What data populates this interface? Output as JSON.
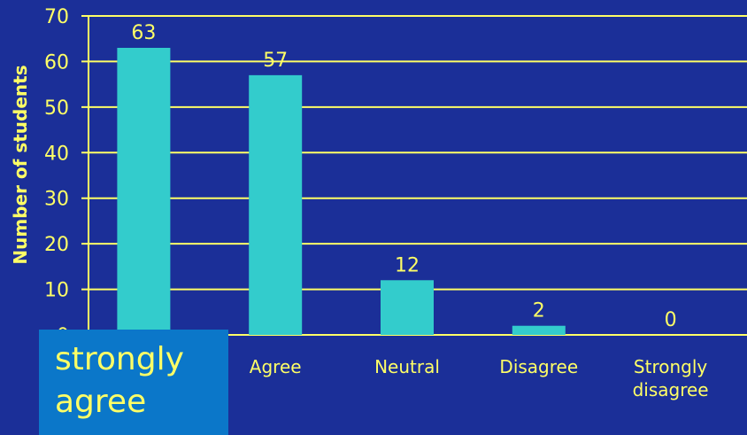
{
  "colors": {
    "background": "#1b2f98",
    "bar": "#33cccc",
    "text": "#ffff66",
    "grid": "#ffff66",
    "overlay": "#0b77c9"
  },
  "chart_data": {
    "type": "bar",
    "categories": [
      "",
      "Agree",
      "Neutral",
      "Disagree",
      "Strongly\ndisagree"
    ],
    "values": [
      63,
      57,
      12,
      2,
      0
    ],
    "data_labels": [
      "63",
      "57",
      "12",
      "2",
      "0"
    ],
    "ylabel": "Number of students",
    "ylim": [
      0,
      70
    ],
    "yticks": [
      0,
      10,
      20,
      30,
      40,
      50,
      60,
      70
    ],
    "grid": true
  },
  "overlay": {
    "label": "strongly\nagree"
  }
}
